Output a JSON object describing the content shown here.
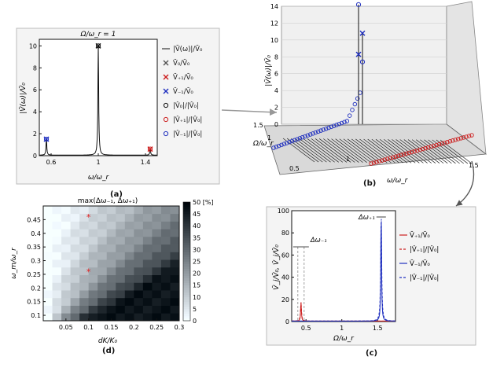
{
  "panel_a": {
    "label": "(a)",
    "chart_data": {
      "type": "line",
      "title": "Ω/ω_r = 1",
      "xlabel": "ω/ω_r",
      "ylabel": "|V̄(ω)|/V̄₀",
      "xlim": [
        0.5,
        1.5
      ],
      "ylim": [
        0,
        10.6
      ],
      "xticks": [
        "0.6",
        "1",
        "1.4"
      ],
      "yticks": [
        "0",
        "2",
        "4",
        "6",
        "8",
        "10"
      ],
      "peaks": [
        {
          "x": 0.56,
          "y": 1.5,
          "series": "V_-1"
        },
        {
          "x": 1.0,
          "y": 10.0,
          "series": "V_0"
        },
        {
          "x": 1.44,
          "y": 0.6,
          "series": "V_+1"
        }
      ],
      "legend": [
        {
          "marker": "—",
          "text": "|V̄(ω)|/V̄₀",
          "color": "#111111"
        },
        {
          "marker": "×",
          "text": "V̄₀/V̄₀",
          "color": "#555555"
        },
        {
          "marker": "×",
          "text": "V̄₊₁/V̄₀",
          "color": "#cc1f1f"
        },
        {
          "marker": "×",
          "text": "V̄₋₁/V̄₀",
          "color": "#1f2fbf"
        },
        {
          "marker": "○",
          "text": "|V̂₀|/|V̂₀|",
          "color": "#111111"
        },
        {
          "marker": "○",
          "text": "|V̂₊₁|/|V̂₀|",
          "color": "#cc1f1f"
        },
        {
          "marker": "○",
          "text": "|V̂₋₁|/|V̂₀|",
          "color": "#1f2fbf"
        }
      ]
    }
  },
  "panel_b": {
    "label": "(b)",
    "chart_data": {
      "type": "line",
      "xlabel": "ω/ω_r",
      "ylabel": "|V̄(ω)|/V̄₀",
      "zlabel": "Ω/ω_r",
      "zticks": [
        "0",
        "2",
        "4",
        "6",
        "8",
        "10",
        "12",
        "14"
      ],
      "xticks": [
        "0.5",
        "1",
        "1.5"
      ],
      "yticks": [
        "1.5",
        "1"
      ],
      "peaks": [
        {
          "x": 1.0,
          "omega": 1.0,
          "value": 14.2,
          "marker": "o",
          "series": "|V̂₋₁|/|V̂₀|"
        },
        {
          "x": 1.0,
          "omega": 1.0,
          "value": 10.8,
          "marker": "x",
          "series": "V̄₋₁/V̄₀"
        },
        {
          "x": 1.0,
          "omega": 1.0,
          "value": 8.3,
          "marker": "x",
          "series": "V̄₋₁/V̄₀"
        },
        {
          "x": 1.0,
          "omega": 1.0,
          "value": 7.4,
          "marker": "o",
          "series": "|V̂₋₁|/|V̂₀|"
        }
      ]
    }
  },
  "panel_c": {
    "label": "(c)",
    "chart_data": {
      "type": "line",
      "xlabel": "Ω/ω_r",
      "ylabel": "V̄_j/V̄₀, V̂_j/V̂₀",
      "xlim": [
        0.3,
        1.75
      ],
      "ylim": [
        0,
        100
      ],
      "xticks": [
        "0.5",
        "1",
        "1.5"
      ],
      "yticks": [
        "0",
        "20",
        "40",
        "60",
        "80",
        "100"
      ],
      "annotations": [
        "Δω₊₁",
        "Δω₋₁"
      ],
      "peaks": [
        {
          "series": "V_+1",
          "x": 0.43,
          "y": 17
        },
        {
          "series": "V_-1",
          "x": 1.55,
          "y": 97
        }
      ],
      "legend": [
        {
          "style": "solid",
          "text": "V̄₊₁/V̄₀",
          "color": "#cc1f1f"
        },
        {
          "style": "dashed",
          "text": "|V̂₊₁|/|V̂₀|",
          "color": "#cc1f1f"
        },
        {
          "style": "solid",
          "text": "V̄₋₁/V̄₀",
          "color": "#1f2fbf"
        },
        {
          "style": "dashed",
          "text": "|V̂₋₁|/|V̂₀|",
          "color": "#1f2fbf"
        }
      ]
    }
  },
  "panel_d": {
    "label": "(d)",
    "chart_data": {
      "type": "heatmap",
      "title": "max(Δω₋₁, Δω₊₁)",
      "xlabel": "dK/K₀",
      "ylabel": "ω_m/ω_r",
      "xlim": [
        0.0,
        0.3
      ],
      "ylim": [
        0.08,
        0.5
      ],
      "xticks": [
        "0.05",
        "0.1",
        "0.15",
        "0.2",
        "0.25",
        "0.3"
      ],
      "yticks": [
        "0.1",
        "0.15",
        "0.2",
        "0.25",
        "0.3",
        "0.35",
        "0.4",
        "0.45"
      ],
      "colorbar_ticks": [
        "0",
        "5",
        "10",
        "15",
        "20",
        "25",
        "30",
        "35",
        "40",
        "45",
        "50 [%]"
      ],
      "colorbar_range": [
        0,
        50
      ],
      "markers": [
        {
          "x": 0.1,
          "y": 0.46,
          "symbol": "*"
        },
        {
          "x": 0.1,
          "y": 0.26,
          "symbol": "*"
        }
      ],
      "grid_model": "value ≈ 50·(dK/K₀)/(ω_m/ω_r)·(cells 15x15)"
    }
  }
}
